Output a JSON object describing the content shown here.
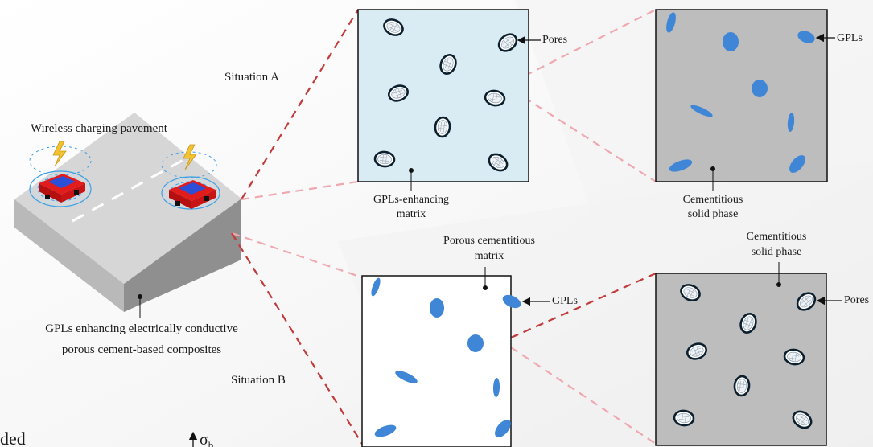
{
  "scene": {
    "pavement_label": "Wireless charging pavement",
    "composite_label_line1": "GPLs enhancing electrically conductive",
    "composite_label_line2": "porous cement-based composites"
  },
  "situation_a": {
    "title": "Situation A",
    "panel1": {
      "callout": "Pores",
      "matrix_label_line1": "GPLs-enhancing",
      "matrix_label_line2": "matrix"
    },
    "panel2": {
      "callout": "GPLs",
      "phase_label_line1": "Cementitious",
      "phase_label_line2": "solid phase"
    }
  },
  "situation_b": {
    "title": "Situation B",
    "panel1": {
      "matrix_label_line1": "Porous cementitious",
      "matrix_label_line2": "matrix",
      "callout": "GPLs"
    },
    "panel2": {
      "phase_label_line1": "Cementitious",
      "phase_label_line2": "solid phase",
      "callout": "Pores"
    }
  },
  "cropped_text": {
    "left_fragment": "ded",
    "sigma_symbol": "σ",
    "sigma_subscript": "b"
  },
  "colors": {
    "matrix_a_fill": "#d9ecf3",
    "solid_fill": "#bdbdbd",
    "gpl_blue": "#3f86d6",
    "dash_red": "#c23a3a",
    "dash_pink": "#f0a8b0",
    "slab_top": "#d5d5d5",
    "car_red": "#e21b1b",
    "car_blue": "#2b4fd6"
  }
}
